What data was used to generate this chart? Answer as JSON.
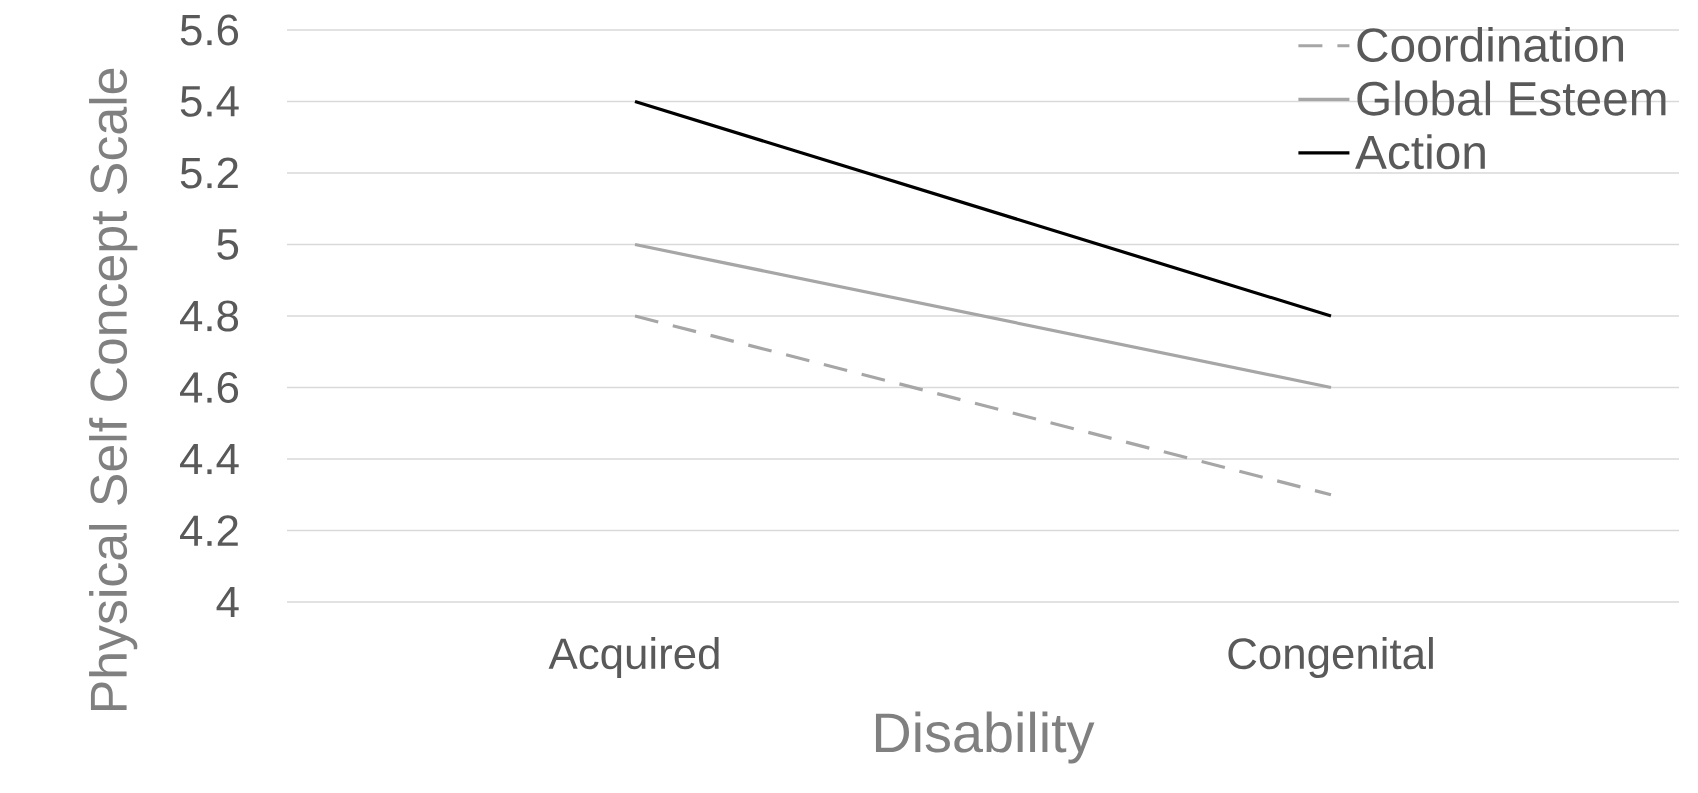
{
  "chart_data": {
    "type": "line",
    "xlabel": "Disability",
    "ylabel": "Physical Self Concept Scale",
    "categories": [
      "Acquired",
      "Congenital"
    ],
    "series": [
      {
        "name": "Coordination",
        "color": "#a6a6a6",
        "line_style": "dashed",
        "values": [
          4.8,
          4.3
        ]
      },
      {
        "name": "Global Esteem",
        "color": "#a6a6a6",
        "line_style": "solid",
        "values": [
          5.0,
          4.6
        ]
      },
      {
        "name": "Action",
        "color": "#000000",
        "line_style": "solid",
        "values": [
          5.4,
          4.8
        ]
      }
    ],
    "ylim": [
      4,
      5.6
    ],
    "yticks": [
      4,
      4.2,
      4.4,
      4.6,
      4.8,
      5,
      5.2,
      5.4,
      5.6
    ],
    "grid": "y",
    "legend": "top right",
    "marker": "none"
  }
}
